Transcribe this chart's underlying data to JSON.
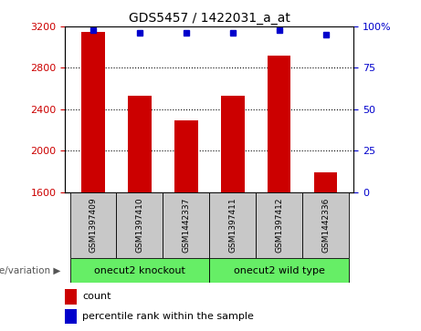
{
  "title": "GDS5457 / 1422031_a_at",
  "samples": [
    "GSM1397409",
    "GSM1397410",
    "GSM1442337",
    "GSM1397411",
    "GSM1397412",
    "GSM1442336"
  ],
  "counts": [
    3150,
    2530,
    2290,
    2530,
    2920,
    1790
  ],
  "percentile_ranks": [
    98,
    96,
    96,
    96,
    98,
    95
  ],
  "ylim_left": [
    1600,
    3200
  ],
  "ylim_right": [
    0,
    100
  ],
  "yticks_left": [
    1600,
    2000,
    2400,
    2800,
    3200
  ],
  "yticks_right": [
    0,
    25,
    50,
    75,
    100
  ],
  "bar_color": "#cc0000",
  "dot_color": "#0000cc",
  "bg_color": "#ffffff",
  "sample_box_color": "#c8c8c8",
  "groups": [
    {
      "label": "onecut2 knockout",
      "indices": [
        0,
        1,
        2
      ],
      "color": "#66ee66"
    },
    {
      "label": "onecut2 wild type",
      "indices": [
        3,
        4,
        5
      ],
      "color": "#66ee66"
    }
  ],
  "group_label_prefix": "genotype/variation",
  "legend_items": [
    {
      "color": "#cc0000",
      "label": "count"
    },
    {
      "color": "#0000cc",
      "label": "percentile rank within the sample"
    }
  ],
  "bar_width": 0.5,
  "grid_yticks": [
    2000,
    2400,
    2800
  ]
}
